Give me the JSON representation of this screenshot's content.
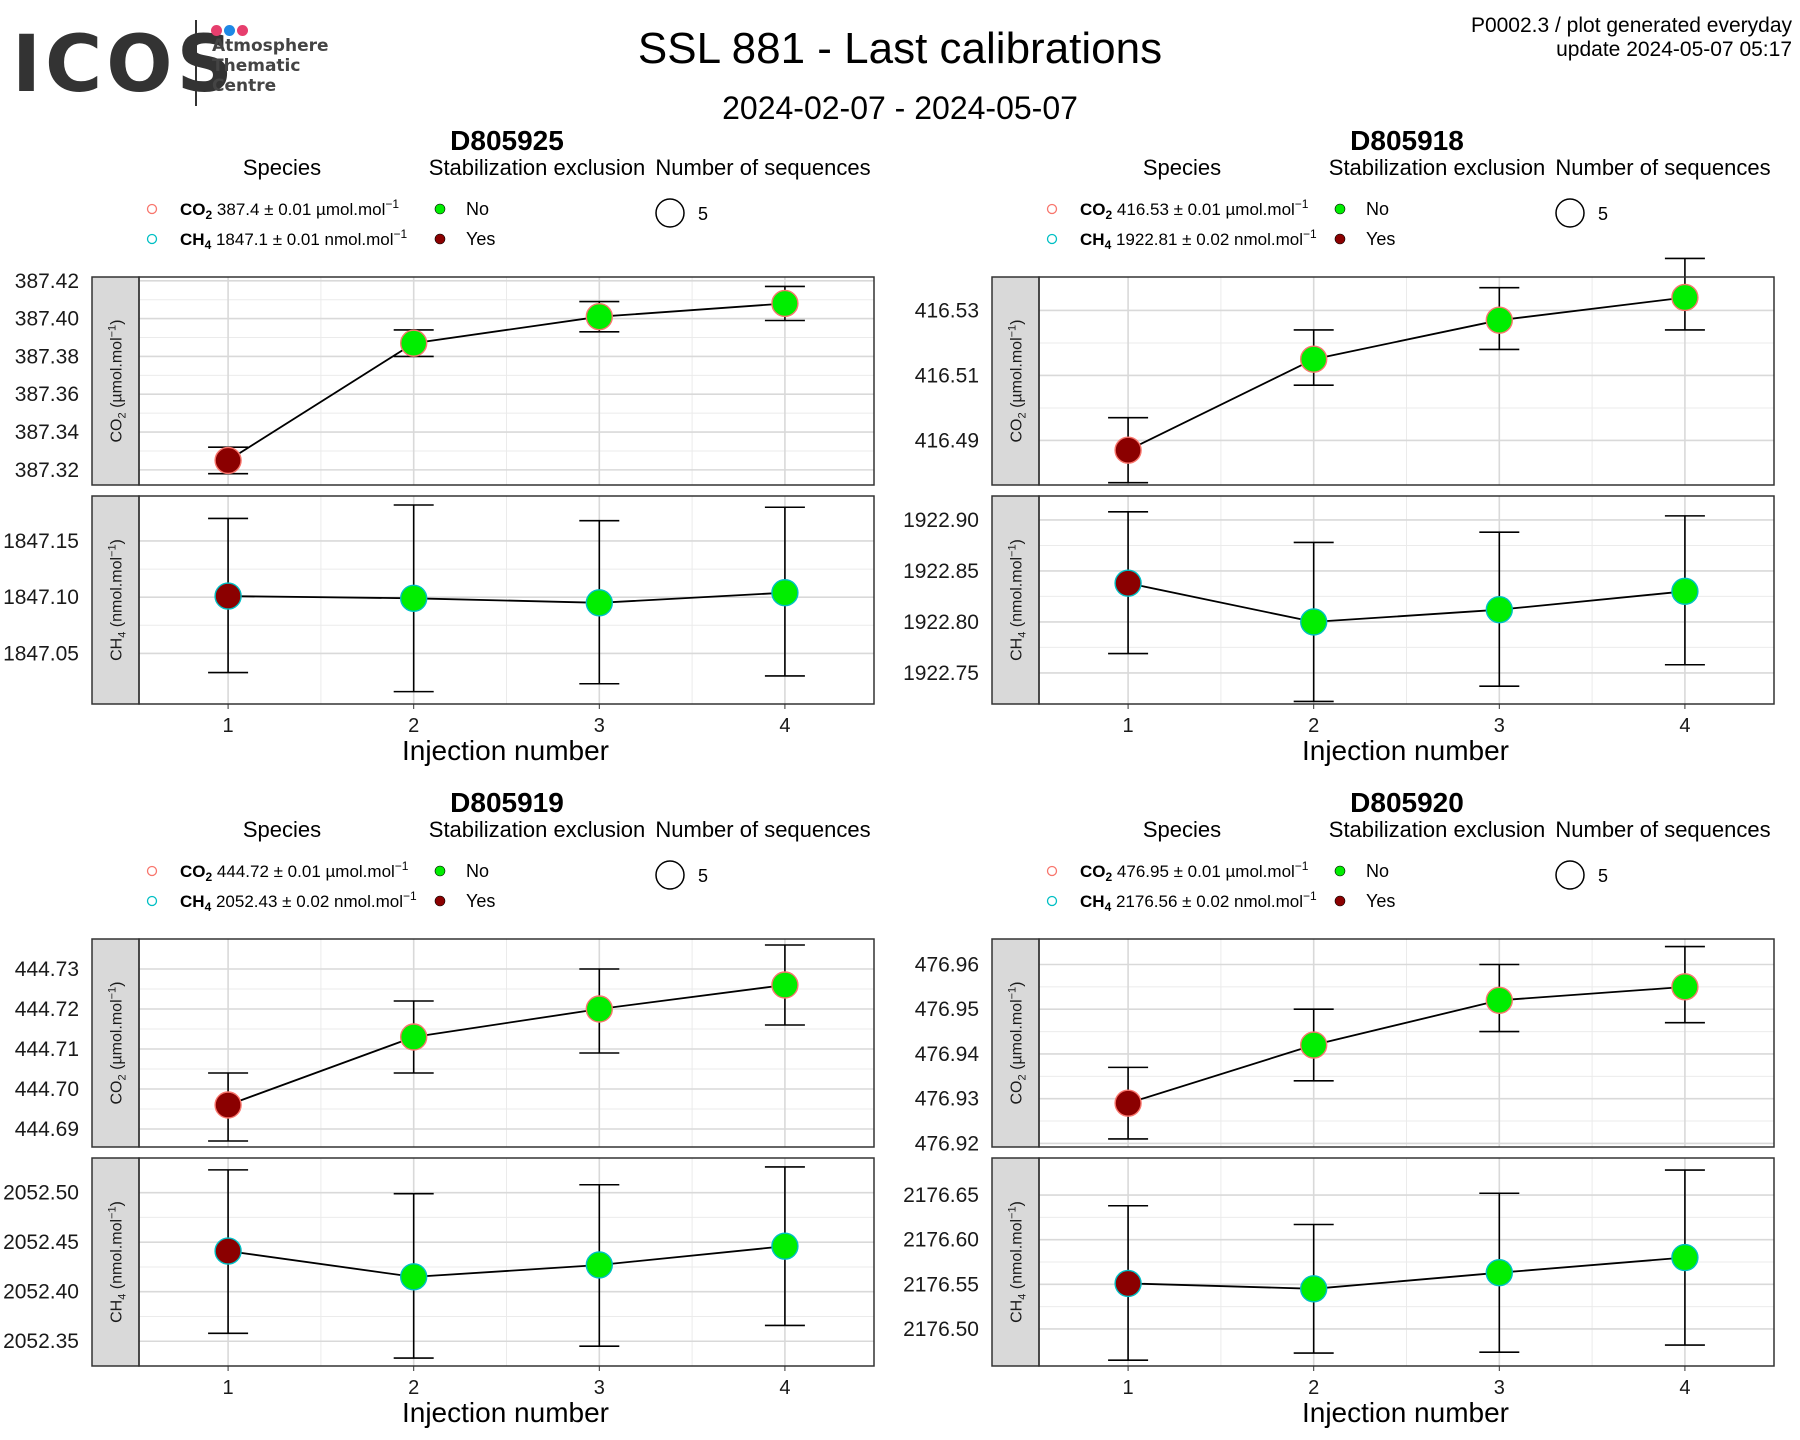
{
  "header": {
    "logo_text": "ICOS",
    "logo_subtitle": "Atmosphere\nThematic\nCentre",
    "logo_dot_colors": [
      "#e63e6d",
      "#1e88e5",
      "#e63e6d"
    ],
    "title": "SSL 881 - Last calibrations",
    "date_range": "2024-02-07 - 2024-05-07",
    "meta_line1": "P0002.3 / plot generated everyday",
    "meta_line2": "update  2024-05-07 05:17"
  },
  "legend": {
    "species_title": "Species",
    "stabilization_title": "Stabilization exclusion",
    "stab_no": "No",
    "stab_yes": "Yes",
    "nseq_title": "Number of sequences",
    "colors": {
      "co2": "#f8766d",
      "ch4": "#00bfc4",
      "no": "#00ee00",
      "yes": "#8b0000"
    }
  },
  "chart_data": [
    {
      "type": "scatter",
      "title": "D805925",
      "xlabel": "Injection number",
      "x": [
        1,
        2,
        3,
        4
      ],
      "n_sequences": 5,
      "species": [
        {
          "name": "CO2",
          "value_text": "387.4 ± 0.01 µmol.mol",
          "unit_text": "µmol.mol"
        },
        {
          "name": "CH4",
          "value_text": "1847.1 ± 0.01 nmol.mol",
          "unit_text": "nmol.mol"
        }
      ],
      "panels": [
        {
          "series": "CO2",
          "ylim": [
            387.312,
            387.422
          ],
          "yticks": [
            "387.32",
            "387.34",
            "387.36",
            "387.38",
            "387.40",
            "387.42"
          ],
          "values": [
            387.325,
            387.387,
            387.401,
            387.408
          ],
          "err_low": [
            387.318,
            387.38,
            387.393,
            387.399
          ],
          "err_high": [
            387.332,
            387.394,
            387.409,
            387.417
          ],
          "excluded": [
            true,
            false,
            false,
            false
          ]
        },
        {
          "series": "CH4",
          "ylim": [
            1847.005,
            1847.19
          ],
          "yticks": [
            "1847.05",
            "1847.10",
            "1847.15"
          ],
          "values": [
            1847.101,
            1847.099,
            1847.095,
            1847.104
          ],
          "err_low": [
            1847.033,
            1847.016,
            1847.023,
            1847.03
          ],
          "err_high": [
            1847.17,
            1847.182,
            1847.168,
            1847.18
          ],
          "excluded": [
            true,
            false,
            false,
            false
          ]
        }
      ]
    },
    {
      "type": "scatter",
      "title": "D805918",
      "xlabel": "Injection number",
      "x": [
        1,
        2,
        3,
        4
      ],
      "n_sequences": 5,
      "species": [
        {
          "name": "CO2",
          "value_text": "416.53 ± 0.01 µmol.mol",
          "unit_text": "µmol.mol"
        },
        {
          "name": "CH4",
          "value_text": "1922.81 ± 0.02 nmol.mol",
          "unit_text": "nmol.mol"
        }
      ],
      "panels": [
        {
          "series": "CO2",
          "ylim": [
            416.4763,
            416.5403
          ],
          "yticks": [
            "416.49",
            "416.51",
            "416.53"
          ],
          "values": [
            416.487,
            416.515,
            416.527,
            416.534
          ],
          "err_low": [
            416.477,
            416.507,
            416.518,
            416.524
          ],
          "err_high": [
            416.497,
            416.524,
            416.537,
            416.546
          ],
          "excluded": [
            true,
            false,
            false,
            false
          ]
        },
        {
          "series": "CH4",
          "ylim": [
            1922.7195,
            1922.9235
          ],
          "yticks": [
            "1922.75",
            "1922.80",
            "1922.85",
            "1922.90"
          ],
          "values": [
            1922.838,
            1922.8,
            1922.812,
            1922.83
          ],
          "err_low": [
            1922.769,
            1922.722,
            1922.737,
            1922.758
          ],
          "err_high": [
            1922.908,
            1922.878,
            1922.888,
            1922.904
          ],
          "excluded": [
            true,
            false,
            false,
            false
          ]
        }
      ]
    },
    {
      "type": "scatter",
      "title": "D805919",
      "xlabel": "Injection number",
      "x": [
        1,
        2,
        3,
        4
      ],
      "n_sequences": 5,
      "species": [
        {
          "name": "CO2",
          "value_text": "444.72 ± 0.01 µmol.mol",
          "unit_text": "µmol.mol"
        },
        {
          "name": "CH4",
          "value_text": "2052.43 ± 0.02 nmol.mol",
          "unit_text": "nmol.mol"
        }
      ],
      "panels": [
        {
          "series": "CO2",
          "ylim": [
            444.6855,
            444.7375
          ],
          "yticks": [
            "444.69",
            "444.70",
            "444.71",
            "444.72",
            "444.73"
          ],
          "values": [
            444.696,
            444.713,
            444.72,
            444.726
          ],
          "err_low": [
            444.687,
            444.704,
            444.709,
            444.716
          ],
          "err_high": [
            444.704,
            444.722,
            444.73,
            444.736
          ],
          "excluded": [
            true,
            false,
            false,
            false
          ]
        },
        {
          "series": "CH4",
          "ylim": [
            2052.325,
            2052.535
          ],
          "yticks": [
            "2052.35",
            "2052.40",
            "2052.45",
            "2052.50"
          ],
          "values": [
            2052.441,
            2052.415,
            2052.427,
            2052.446
          ],
          "err_low": [
            2052.358,
            2052.333,
            2052.345,
            2052.366
          ],
          "err_high": [
            2052.523,
            2052.499,
            2052.508,
            2052.526
          ],
          "excluded": [
            true,
            false,
            false,
            false
          ]
        }
      ]
    },
    {
      "type": "scatter",
      "title": "D805920",
      "xlabel": "Injection number",
      "x": [
        1,
        2,
        3,
        4
      ],
      "n_sequences": 5,
      "species": [
        {
          "name": "CO2",
          "value_text": "476.95 ± 0.01 µmol.mol",
          "unit_text": "µmol.mol"
        },
        {
          "name": "CH4",
          "value_text": "2176.56 ± 0.02 nmol.mol",
          "unit_text": "nmol.mol"
        }
      ],
      "panels": [
        {
          "series": "CO2",
          "ylim": [
            476.9192,
            476.9657
          ],
          "yticks": [
            "476.92",
            "476.93",
            "476.94",
            "476.95",
            "476.96"
          ],
          "values": [
            476.929,
            476.942,
            476.952,
            476.955
          ],
          "err_low": [
            476.921,
            476.934,
            476.945,
            476.947
          ],
          "err_high": [
            476.937,
            476.95,
            476.96,
            476.964
          ],
          "excluded": [
            true,
            false,
            false,
            false
          ]
        },
        {
          "series": "CH4",
          "ylim": [
            2176.4585,
            2176.6915
          ],
          "yticks": [
            "2176.50",
            "2176.55",
            "2176.60",
            "2176.65"
          ],
          "values": [
            2176.551,
            2176.545,
            2176.563,
            2176.58
          ],
          "err_low": [
            2176.465,
            2176.473,
            2176.474,
            2176.482
          ],
          "err_high": [
            2176.638,
            2176.617,
            2176.652,
            2176.678
          ],
          "excluded": [
            true,
            false,
            false,
            false
          ]
        }
      ]
    }
  ]
}
